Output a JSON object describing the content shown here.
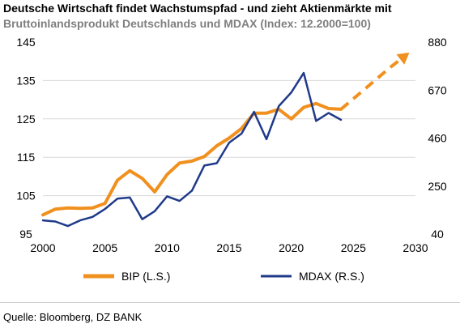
{
  "header": {
    "title": "Deutsche Wirtschaft findet Wachstumspfad - und zieht Aktienmärkte mit",
    "subtitle": "Bruttoinlandsprodukt Deutschlands und MDAX (Index: 12.2000=100)"
  },
  "footer": {
    "source": "Quelle: Bloomberg, DZ BANK"
  },
  "chart_data": {
    "type": "line",
    "x_ticks": [
      "2000",
      "2005",
      "2010",
      "2015",
      "2020",
      "2025",
      "2030"
    ],
    "xlim": [
      2000,
      2030
    ],
    "y_left_ticks": [
      "145",
      "135",
      "125",
      "115",
      "105",
      "95"
    ],
    "ylim_left": [
      95,
      145
    ],
    "y_right_ticks": [
      "880",
      "670",
      "460",
      "250",
      "40"
    ],
    "ylim_right": [
      40,
      880
    ],
    "grid": true,
    "legend_position": "bottom",
    "series": [
      {
        "name": "BIP (L.S.)",
        "axis": "left",
        "color": "#f0901e",
        "x": [
          2000,
          2001,
          2002,
          2003,
          2004,
          2005,
          2006,
          2007,
          2008,
          2009,
          2010,
          2011,
          2012,
          2013,
          2014,
          2015,
          2016,
          2017,
          2018,
          2019,
          2020,
          2021,
          2022,
          2023,
          2024
        ],
        "values": [
          100,
          101.5,
          101.8,
          101.7,
          101.8,
          103,
          109,
          111.5,
          109.5,
          106,
          110.5,
          113.5,
          114,
          115.2,
          118,
          120,
          122.5,
          126.5,
          126.5,
          127.5,
          125,
          128,
          129,
          127.7,
          127.5
        ]
      },
      {
        "name": "MDAX (R.S.)",
        "axis": "right",
        "color": "#1f3a8a",
        "x": [
          2000,
          2001,
          2002,
          2003,
          2004,
          2005,
          2006,
          2007,
          2008,
          2009,
          2010,
          2011,
          2012,
          2013,
          2014,
          2015,
          2016,
          2017,
          2018,
          2019,
          2020,
          2021,
          2022,
          2023,
          2024
        ],
        "values": [
          100,
          95,
          75,
          100,
          115,
          150,
          195,
          200,
          105,
          140,
          205,
          185,
          230,
          340,
          350,
          440,
          480,
          575,
          455,
          600,
          660,
          745,
          535,
          570,
          540
        ]
      },
      {
        "name": "",
        "axis": "left",
        "color": "#f0901e",
        "style": "dashed",
        "x": [
          2024,
          2026,
          2028,
          2029.2
        ],
        "values": [
          127.5,
          133,
          138.5,
          141.5
        ]
      }
    ]
  }
}
